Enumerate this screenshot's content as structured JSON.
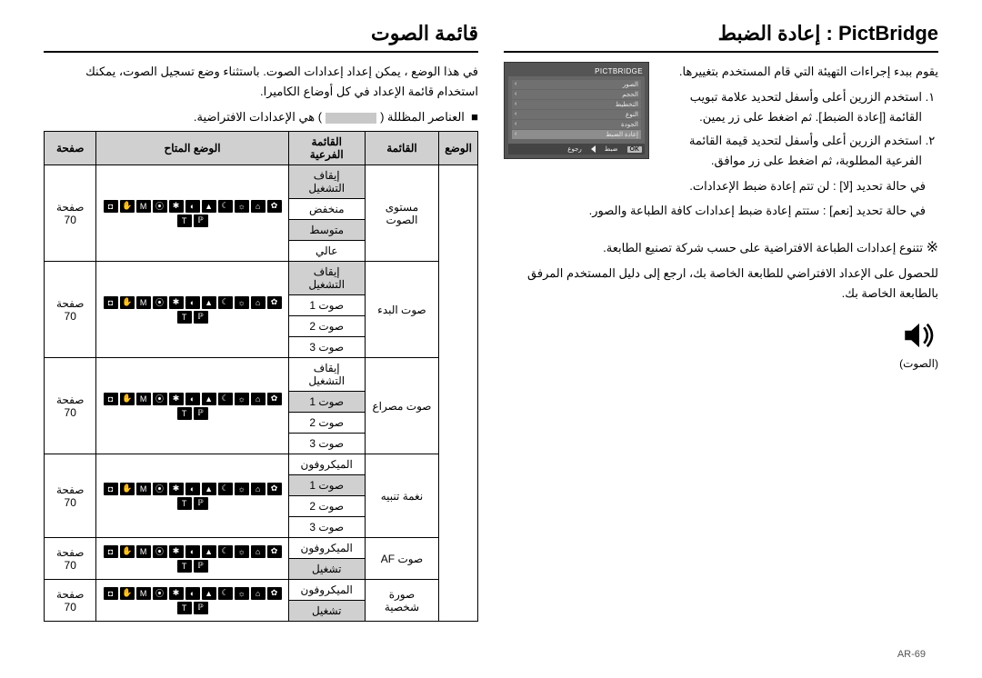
{
  "left_col": {
    "title": "PictBridge : إعادة الضبط",
    "intro": "يقوم ببدء إجراءات التهيئة التي قام المستخدم بتغييرها.",
    "steps": [
      "استخدم الزرين أعلى وأسفل لتحديد علامة تبويب القائمة [إعادة الضبط]. ثم اضغط على زر يمين.",
      "استخدم الزرين أعلى وأسفل لتحديد قيمة القائمة الفرعية المطلوبة، ثم اضغط على زر موافق."
    ],
    "choice_no": "في حالة تحديد [لا]   :  لن تتم إعادة ضبط الإعدادات.",
    "choice_yes": "في حالة تحديد [نعم]  :  ستتم إعادة ضبط إعدادات كافة الطباعة والصور.",
    "note_symbol": "※",
    "note_1": "تتنوع إعدادات الطباعة الافتراضية على حسب شركة تصنيع الطابعة.",
    "note_2": "للحصول على الإعداد الافتراضي للطابعة الخاصة بك، ارجع إلى دليل المستخدم المرفق بالطابعة الخاصة بك.",
    "screenshot": {
      "header": "PICTBRIDGE",
      "rows": [
        "الصور",
        "الحجم",
        "التخطيط",
        "النوع",
        "الجودة",
        "إعادة الضبط"
      ],
      "footer_ok": "OK",
      "footer_set": "ضبط",
      "footer_back": "رجوع"
    }
  },
  "right_col": {
    "title": "قائمة الصوت",
    "intro": "في هذا الوضع ، يمكن إعداد إعدادات الصوت. باستثناء وضع تسجيل الصوت، يمكنك استخدام قائمة الإعداد في كل أوضاع الكاميرا.",
    "legend": "■  العناصر المظللة (             ) هي الإعدادات الافتراضية.",
    "speaker_label": "(الصوت)",
    "table": {
      "headers": [
        "الوضع",
        "القائمة",
        "القائمة الفرعية",
        "الوضع المتاح",
        "صفحة"
      ],
      "page_ref": "صفحة 70",
      "groups": [
        {
          "menu": "مستوى الصوت",
          "subs": [
            {
              "label": "إيقاف التشغيل",
              "shaded": true
            },
            {
              "label": "منخفض",
              "shaded": false
            },
            {
              "label": "متوسط",
              "shaded": true
            },
            {
              "label": "عالي",
              "shaded": false
            }
          ]
        },
        {
          "menu": "صوت البدء",
          "subs": [
            {
              "label": "إيقاف التشغيل",
              "shaded": true
            },
            {
              "label": "صوت 1",
              "shaded": false
            },
            {
              "label": "صوت 2",
              "shaded": false
            },
            {
              "label": "صوت 3",
              "shaded": false
            }
          ]
        },
        {
          "menu": "صوت مصراع",
          "subs": [
            {
              "label": "إيقاف التشغيل",
              "shaded": false
            },
            {
              "label": "صوت 1",
              "shaded": true
            },
            {
              "label": "صوت 2",
              "shaded": false
            },
            {
              "label": "صوت 3",
              "shaded": false
            }
          ]
        },
        {
          "menu": "نغمة تنبيه",
          "subs": [
            {
              "label": "الميكروفون",
              "shaded": false
            },
            {
              "label": "صوت 1",
              "shaded": true
            },
            {
              "label": "صوت 2",
              "shaded": false
            },
            {
              "label": "صوت 3",
              "shaded": false
            }
          ]
        },
        {
          "menu": "صوت AF",
          "subs": [
            {
              "label": "الميكروفون",
              "shaded": false
            },
            {
              "label": "تشغيل",
              "shaded": true
            }
          ]
        },
        {
          "menu": "صورة شخصية",
          "subs": [
            {
              "label": "الميكروفون",
              "shaded": false
            },
            {
              "label": "تشغيل",
              "shaded": true
            }
          ]
        }
      ],
      "icon_glyphs": [
        "◘",
        "✋",
        "M",
        "⦿",
        "✱",
        "◐",
        "▲",
        "☾",
        "☼",
        "⌂",
        "✿",
        "T",
        "ℙ"
      ]
    }
  },
  "page_number": "AR-69"
}
